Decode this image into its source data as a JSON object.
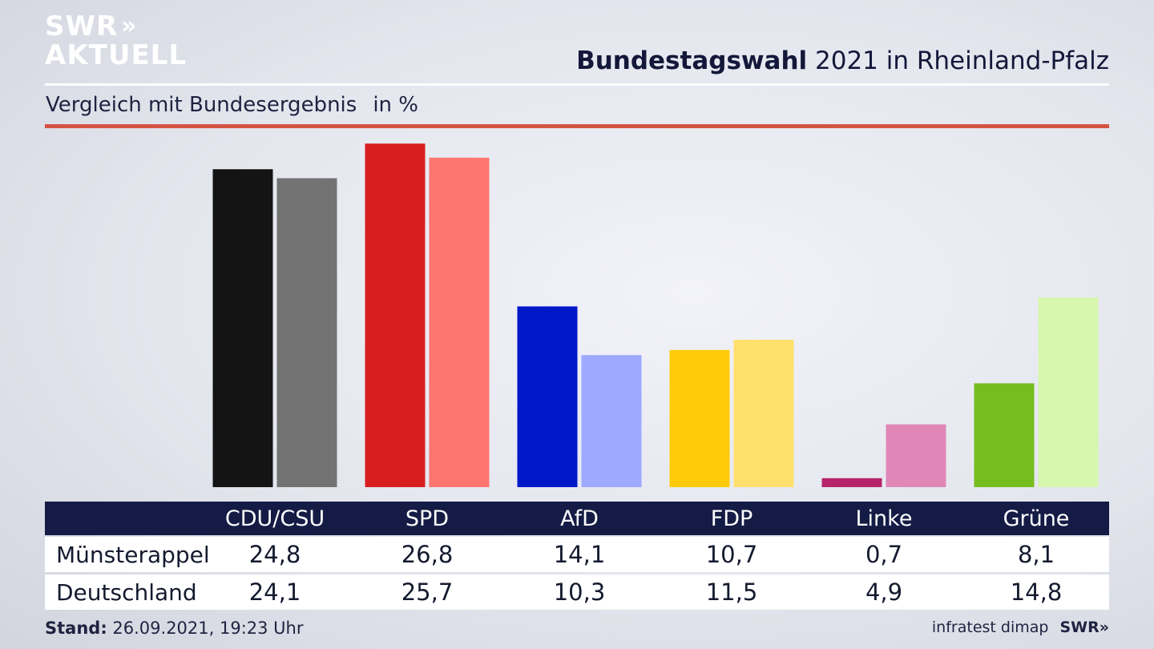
{
  "logo": {
    "line1": "SWR",
    "arrows": "»",
    "line2": "AKTUELL"
  },
  "header": {
    "title_bold": "Bundestagswahl",
    "title_rest": " 2021 in Rheinland-Pfalz"
  },
  "subtitle": {
    "text": "Vergleich mit Bundesergebnis",
    "unit": "in %"
  },
  "chart_data": {
    "type": "bar",
    "categories": [
      "CDU/CSU",
      "SPD",
      "AfD",
      "FDP",
      "Linke",
      "Grüne"
    ],
    "series": [
      {
        "name": "Münsterappel",
        "values": [
          24.8,
          26.8,
          14.1,
          10.7,
          0.7,
          8.1
        ]
      },
      {
        "name": "Deutschland",
        "values": [
          24.1,
          25.7,
          10.3,
          11.5,
          4.9,
          14.8
        ]
      }
    ],
    "colors": {
      "primary": [
        "#141414",
        "#d71f1f",
        "#0018c8",
        "#ffcb0a",
        "#b6246c",
        "#76bd1f"
      ],
      "secondary": [
        "#737373",
        "#ff7570",
        "#9eaaff",
        "#ffe06d",
        "#e087b8",
        "#d6f7ad"
      ]
    },
    "ylim": [
      0,
      28
    ],
    "legend": "table-below"
  },
  "table": {
    "row_labels": [
      "Münsterappel",
      "Deutschland"
    ]
  },
  "footer": {
    "stand_label": "Stand:",
    "stand_value": " 26.09.2021, 19:23 Uhr",
    "source": "infratest dimap",
    "brand": "SWR»"
  }
}
